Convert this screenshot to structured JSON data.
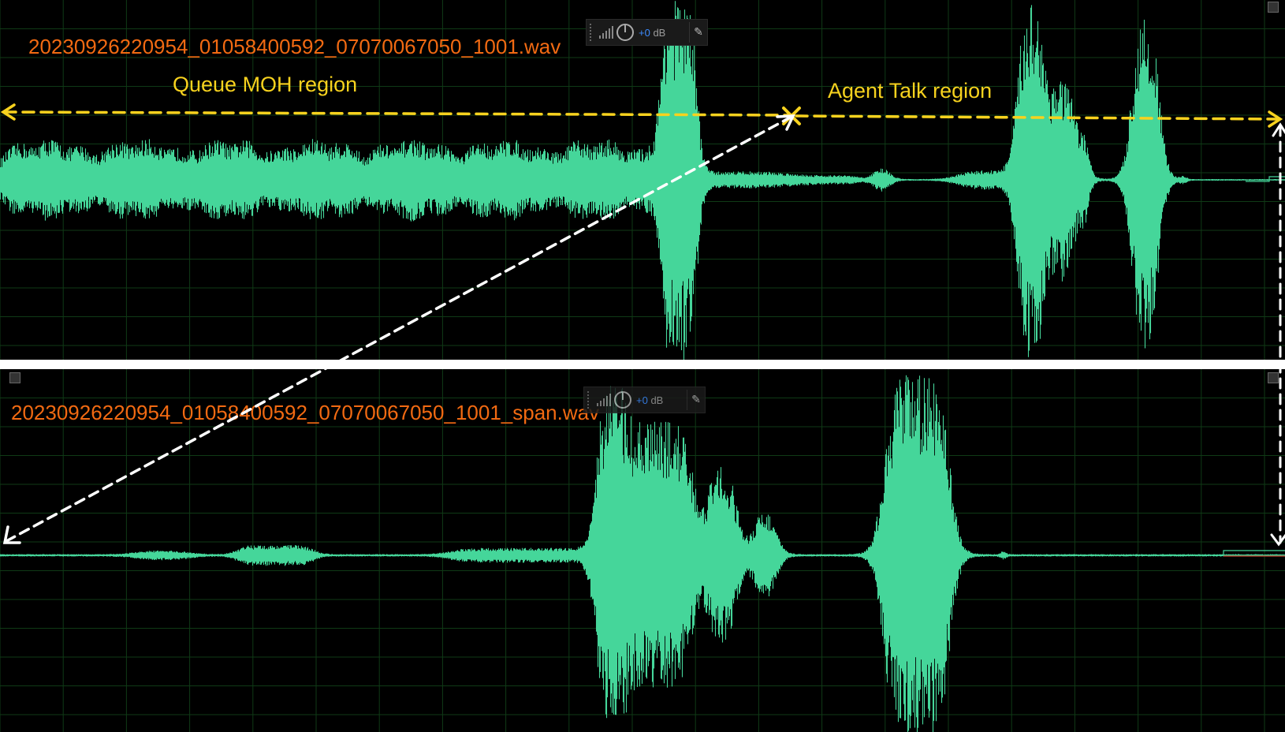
{
  "tracks": [
    {
      "filename": "20230926220954_01058400592_07070067050_1001.wav",
      "volume": {
        "sign": "+0",
        "unit": "dB"
      }
    },
    {
      "filename": "20230926220954_01058400592_07070067050_1001_span.wav",
      "volume": {
        "sign": "+0",
        "unit": "dB"
      }
    }
  ],
  "annotations": {
    "queue_label": "Queue MOH region",
    "agent_label": "Agent Talk region"
  },
  "colors": {
    "waveform": "#45d69a",
    "grid": "#0f3a16",
    "filename": "#f26a12",
    "annotation": "#f7d21e",
    "arrow": "#ffffff",
    "volume_plus": "#3d8cff"
  },
  "icons": [
    "grip-icon",
    "volume-bars-icon",
    "power-icon",
    "pin-icon",
    "resize-corner-icon"
  ]
}
